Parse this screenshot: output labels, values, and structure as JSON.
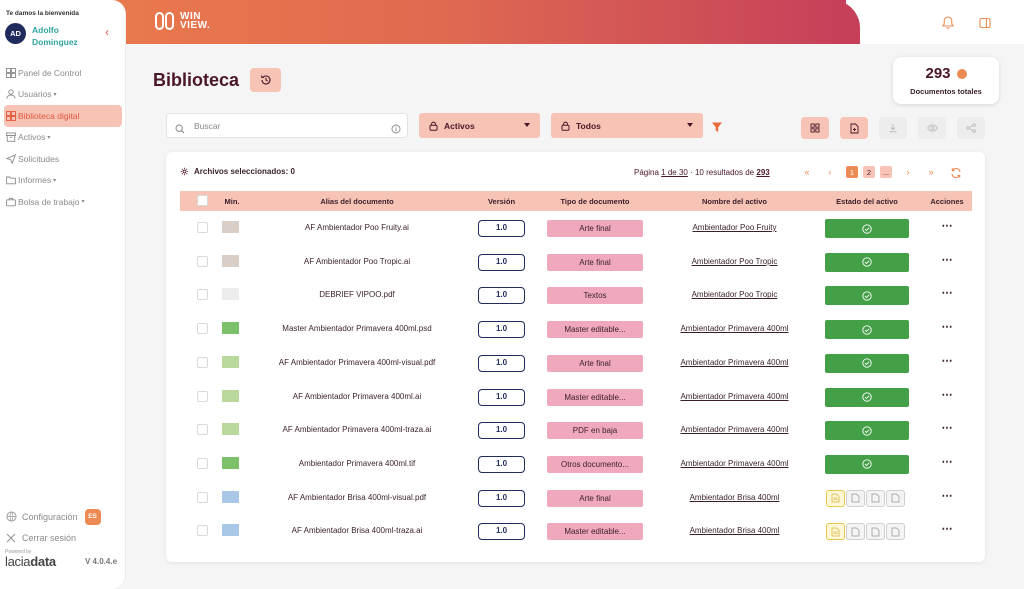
{
  "sidebar": {
    "welcome": "Te damos la bienvenida",
    "avatar_initials": "AD",
    "user_name": "Adolfo Dominguez",
    "items": [
      {
        "label": "Panel de Control",
        "icon": "dashboard-icon",
        "caret": false,
        "active": false
      },
      {
        "label": "Usuarios",
        "icon": "user-icon",
        "caret": true,
        "active": false
      },
      {
        "label": "Biblioteca digital",
        "icon": "grid-icon",
        "caret": false,
        "active": true
      },
      {
        "label": "Activos",
        "icon": "box-icon",
        "caret": true,
        "active": false
      },
      {
        "label": "Solicitudes",
        "icon": "send-icon",
        "caret": false,
        "active": false
      },
      {
        "label": "Informes",
        "icon": "folder-icon",
        "caret": true,
        "active": false
      },
      {
        "label": "Bolsa de trabajo",
        "icon": "briefcase-icon",
        "caret": true,
        "active": false
      }
    ],
    "config_label": "Configuración",
    "lang": "ES",
    "logout_label": "Cerrar sesión",
    "powered": "Powered by",
    "brand_a": "lacia",
    "brand_b": "data",
    "version": "V 4.0.4.e"
  },
  "topbar": {
    "logo_line1": "WIN",
    "logo_line2": "VIEW."
  },
  "page": {
    "title": "Biblioteca",
    "total": "293",
    "total_label": "Documentos totales"
  },
  "filters": {
    "search_placeholder": "Buscar",
    "dropdown1": "Activos",
    "dropdown2": "Todos"
  },
  "table": {
    "selected": "Archivos seleccionados: 0",
    "pag_prefix": "Página",
    "pag_range": "1 de 30",
    "pag_sep": " · 10 resultados ",
    "pag_de": "de",
    "pag_total": "293",
    "pages": [
      "1",
      "2",
      "..."
    ],
    "headers": [
      "Min.",
      "Alias del documento",
      "Versión",
      "Tipo de documento",
      "Nombre del activo",
      "Estado del activo",
      "Acciones"
    ],
    "rows": [
      {
        "alias": "AF Ambientador Poo Fruity.ai",
        "version": "1.0",
        "tipo": "Arte final",
        "activo": "Ambientador Poo Fruity",
        "estado": "ok"
      },
      {
        "alias": "AF Ambientador Poo Tropic.ai",
        "version": "1.0",
        "tipo": "Arte final",
        "activo": "Ambientador Poo Tropic",
        "estado": "ok"
      },
      {
        "alias": "DEBRIEF VIPOO.pdf",
        "version": "1.0",
        "tipo": "Textos",
        "activo": "Ambientador Poo Tropic",
        "estado": "ok"
      },
      {
        "alias": "Master Ambientador Primavera 400ml.psd",
        "version": "1.0",
        "tipo": "Master editable...",
        "activo": "Ambientador Primavera 400ml",
        "estado": "ok"
      },
      {
        "alias": "AF Ambientador Primavera 400ml-visual.pdf",
        "version": "1.0",
        "tipo": "Arte final",
        "activo": "Ambientador Primavera 400ml",
        "estado": "ok"
      },
      {
        "alias": "AF Ambientador Primavera 400ml.ai",
        "version": "1.0",
        "tipo": "Master editable...",
        "activo": "Ambientador Primavera 400ml",
        "estado": "ok"
      },
      {
        "alias": "AF Ambientador Primavera 400ml-traza.ai",
        "version": "1.0",
        "tipo": "PDF en baja",
        "activo": "Ambientador Primavera 400ml",
        "estado": "ok"
      },
      {
        "alias": "Ambientador Primavera 400ml.tif",
        "version": "1.0",
        "tipo": "Otros documento...",
        "activo": "Ambientador Primavera 400ml",
        "estado": "ok"
      },
      {
        "alias": "AF Ambientador Brisa 400ml-visual.pdf",
        "version": "1.0",
        "tipo": "Arte final",
        "activo": "Ambientador Brisa 400ml",
        "estado": "steps"
      },
      {
        "alias": "AF Ambientador Brisa 400ml-traza.ai",
        "version": "1.0",
        "tipo": "Master editable...",
        "activo": "Ambientador Brisa 400ml",
        "estado": "steps"
      }
    ],
    "thumb_colors": [
      "#d9cfc6",
      "#d9cfc6",
      "#ededed",
      "#7cc06a",
      "#b9d89b",
      "#b9d89b",
      "#b9d89b",
      "#7cc06a",
      "#a9c7e6",
      "#a9c7e6"
    ]
  },
  "colors": {
    "accent": "#ec8a53",
    "pink": "#f6c3b5",
    "dark": "#4a1628",
    "green": "#43a047"
  }
}
